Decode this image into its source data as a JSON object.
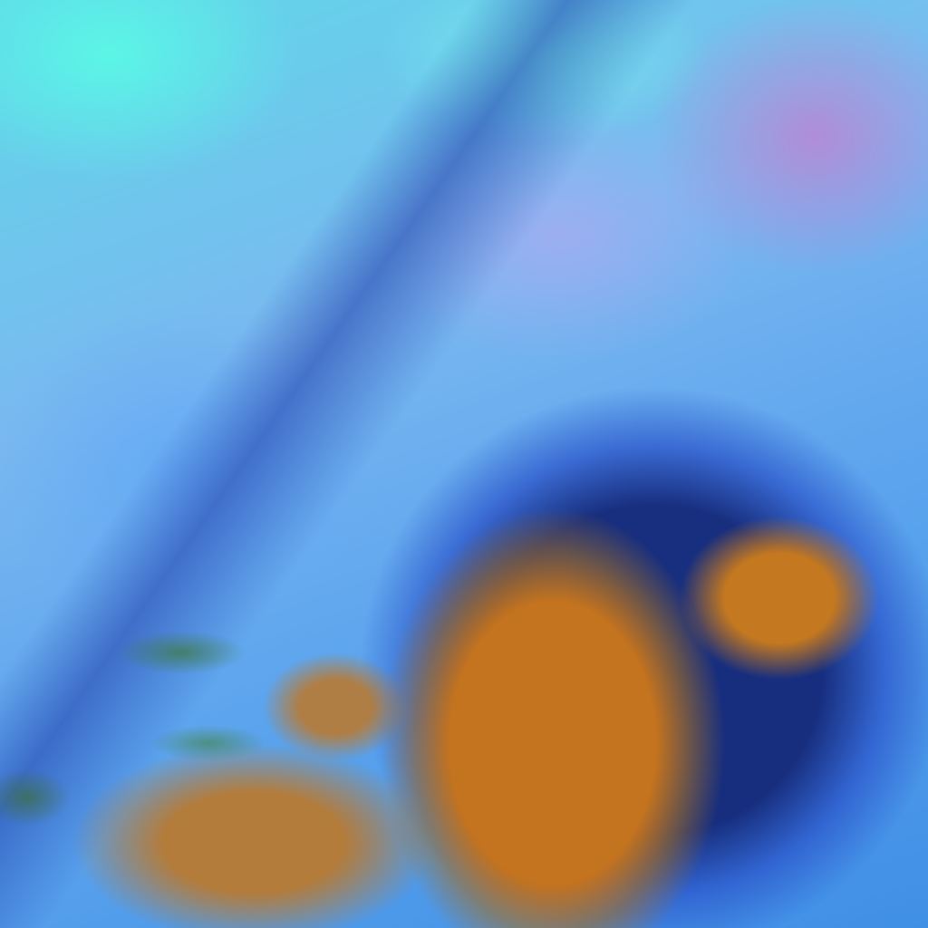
{
  "image": {
    "kind": "satellite false-color cloud imagery",
    "colors": {
      "clear_sky": "#5fa6ee",
      "high_cloud_cyan": "#5fd8e8",
      "land_purple": "#be82d2",
      "storm_edge": "#142878",
      "storm_core": "#c4731e"
    }
  }
}
